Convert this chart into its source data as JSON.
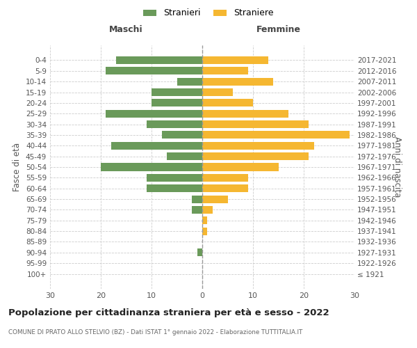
{
  "age_groups": [
    "100+",
    "95-99",
    "90-94",
    "85-89",
    "80-84",
    "75-79",
    "70-74",
    "65-69",
    "60-64",
    "55-59",
    "50-54",
    "45-49",
    "40-44",
    "35-39",
    "30-34",
    "25-29",
    "20-24",
    "15-19",
    "10-14",
    "5-9",
    "0-4"
  ],
  "birth_years": [
    "≤ 1921",
    "1922-1926",
    "1927-1931",
    "1932-1936",
    "1937-1941",
    "1942-1946",
    "1947-1951",
    "1952-1956",
    "1957-1961",
    "1962-1966",
    "1967-1971",
    "1972-1976",
    "1977-1981",
    "1982-1986",
    "1987-1991",
    "1992-1996",
    "1997-2001",
    "2002-2006",
    "2007-2011",
    "2012-2016",
    "2017-2021"
  ],
  "maschi": [
    0,
    0,
    1,
    0,
    0,
    0,
    2,
    2,
    11,
    11,
    20,
    7,
    18,
    8,
    11,
    19,
    10,
    10,
    5,
    19,
    17
  ],
  "femmine": [
    0,
    0,
    0,
    0,
    1,
    1,
    2,
    5,
    9,
    9,
    15,
    21,
    22,
    29,
    21,
    17,
    10,
    6,
    14,
    9,
    13
  ],
  "color_maschi": "#6a9a5a",
  "color_femmine": "#f5b731",
  "grid_color": "#cccccc",
  "title": "Popolazione per cittadinanza straniera per età e sesso - 2022",
  "subtitle": "COMUNE DI PRATO ALLO STELVIO (BZ) - Dati ISTAT 1° gennaio 2022 - Elaborazione TUTTITALIA.IT",
  "header_left": "Maschi",
  "header_right": "Femmine",
  "ylabel_left": "Fasce di età",
  "ylabel_right": "Anni di nascita",
  "legend_maschi": "Stranieri",
  "legend_femmine": "Straniere",
  "xlim": 30
}
